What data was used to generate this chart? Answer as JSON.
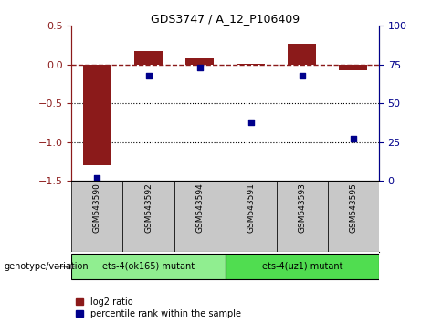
{
  "title": "GDS3747 / A_12_P106409",
  "samples": [
    "GSM543590",
    "GSM543592",
    "GSM543594",
    "GSM543591",
    "GSM543593",
    "GSM543595"
  ],
  "log2_ratio": [
    -1.3,
    0.17,
    0.08,
    0.01,
    0.27,
    -0.07
  ],
  "percentile_rank": [
    2,
    68,
    73,
    38,
    68,
    27
  ],
  "ylim_left": [
    -1.5,
    0.5
  ],
  "ylim_right": [
    0,
    100
  ],
  "yticks_left": [
    -1.5,
    -1.0,
    -0.5,
    0.0,
    0.5
  ],
  "yticks_right": [
    0,
    25,
    50,
    75,
    100
  ],
  "bar_color": "#8B1A1A",
  "scatter_color": "#00008B",
  "ref_line_y": 0.0,
  "dotted_lines": [
    -0.5,
    -1.0
  ],
  "group1_label": "ets-4(ok165) mutant",
  "group2_label": "ets-4(uz1) mutant",
  "group1_indices": [
    0,
    1,
    2
  ],
  "group2_indices": [
    3,
    4,
    5
  ],
  "group1_color": "#90EE90",
  "group2_color": "#50DD50",
  "sample_bg_color": "#C8C8C8",
  "genotype_label": "genotype/variation",
  "legend_log2": "log2 ratio",
  "legend_pct": "percentile rank within the sample",
  "bar_width": 0.55
}
